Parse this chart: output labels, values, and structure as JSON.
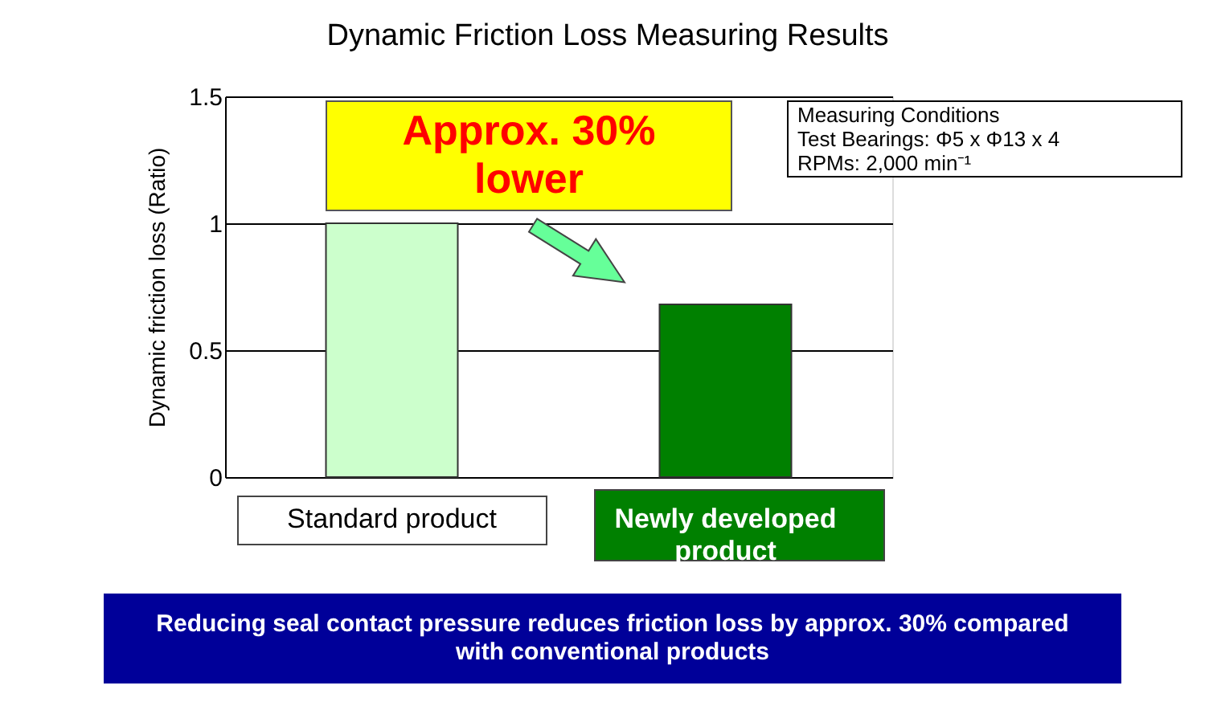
{
  "chart_data": {
    "type": "bar",
    "title": "Dynamic Friction Loss Measuring Results",
    "categories": [
      "Standard product",
      "Newly developed product"
    ],
    "values": [
      1.0,
      0.68
    ],
    "colors": [
      "#ccffcc",
      "#008000"
    ],
    "ylabel": "Dynamic friction loss (Ratio)",
    "ylim": [
      0,
      1.5
    ],
    "yticks": [
      0,
      0.5,
      1,
      1.5
    ],
    "grid": "y",
    "annotations": [
      "Approx. 30%\nlower",
      "Measuring Conditions\nTest Bearings: Φ5 x Φ13 x 4\nRPMs: 2,000 min⁻¹",
      "Reducing seal contact pressure reduces friction loss by approx. 30% compared\nwith conventional products"
    ]
  }
}
